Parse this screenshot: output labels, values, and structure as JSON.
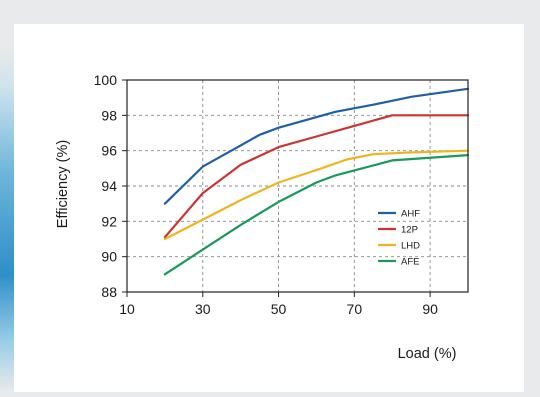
{
  "chart_data": {
    "type": "line",
    "title": "",
    "xlabel": "Load (%)",
    "ylabel": "Efficiency (%)",
    "xlim": [
      10,
      100
    ],
    "ylim": [
      88,
      100
    ],
    "x_ticks": [
      10,
      30,
      50,
      70,
      90
    ],
    "y_ticks": [
      88,
      90,
      92,
      94,
      96,
      98,
      100
    ],
    "grid": true,
    "legend_position": "inside-lower-right",
    "series": [
      {
        "name": "AHF",
        "color": "#1f5fa6",
        "points": [
          [
            20,
            93.0
          ],
          [
            30,
            95.1
          ],
          [
            40,
            96.3
          ],
          [
            45,
            96.9
          ],
          [
            50,
            97.3
          ],
          [
            55,
            97.6
          ],
          [
            65,
            98.2
          ],
          [
            75,
            98.6
          ],
          [
            85,
            99.05
          ],
          [
            100,
            99.5
          ]
        ]
      },
      {
        "name": "12P",
        "color": "#cc3333",
        "points": [
          [
            20,
            91.1
          ],
          [
            30,
            93.6
          ],
          [
            40,
            95.2
          ],
          [
            50,
            96.2
          ],
          [
            60,
            96.8
          ],
          [
            70,
            97.4
          ],
          [
            80,
            98.0
          ],
          [
            100,
            98.0
          ]
        ]
      },
      {
        "name": "LHD",
        "color": "#f0b41e",
        "points": [
          [
            20,
            91.0
          ],
          [
            30,
            92.1
          ],
          [
            40,
            93.2
          ],
          [
            50,
            94.2
          ],
          [
            60,
            94.9
          ],
          [
            68,
            95.5
          ],
          [
            75,
            95.8
          ],
          [
            85,
            95.9
          ],
          [
            100,
            96.0
          ]
        ]
      },
      {
        "name": "AFE",
        "color": "#1a9a5a",
        "points": [
          [
            20,
            89.0
          ],
          [
            30,
            90.4
          ],
          [
            40,
            91.8
          ],
          [
            50,
            93.1
          ],
          [
            60,
            94.2
          ],
          [
            65,
            94.6
          ],
          [
            80,
            95.45
          ],
          [
            100,
            95.75
          ]
        ]
      }
    ]
  }
}
